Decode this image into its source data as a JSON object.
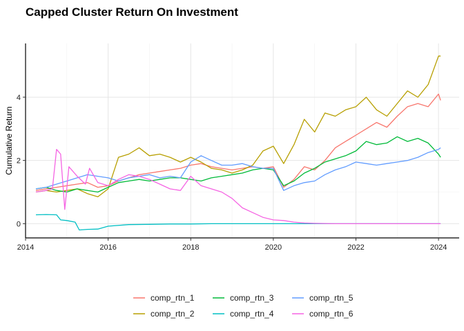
{
  "chart_data": {
    "type": "line",
    "title": "Capped Cluster Return On Investment",
    "xlabel": "",
    "ylabel": "Cumulative Return",
    "xlim": [
      2014.0,
      2024.5
    ],
    "ylim": [
      -0.45,
      5.7
    ],
    "x_ticks": [
      2014,
      2016,
      2018,
      2020,
      2022,
      2024
    ],
    "x_tick_labels": [
      "2014",
      "2016",
      "2018",
      "2020",
      "2022",
      "2024"
    ],
    "y_ticks": [
      0,
      2,
      4
    ],
    "y_tick_labels": [
      "0",
      "2",
      "4"
    ],
    "grid": true,
    "legend_position": "bottom",
    "series": [
      {
        "name": "comp_rtn_1",
        "color": "#F8766D",
        "points": [
          [
            2014.25,
            1.05
          ],
          [
            2014.5,
            1.1
          ],
          [
            2014.75,
            1.15
          ],
          [
            2015.0,
            1.2
          ],
          [
            2015.25,
            1.25
          ],
          [
            2015.5,
            1.3
          ],
          [
            2015.75,
            1.15
          ],
          [
            2016.0,
            1.2
          ],
          [
            2016.25,
            1.35
          ],
          [
            2016.5,
            1.45
          ],
          [
            2016.75,
            1.55
          ],
          [
            2017.0,
            1.6
          ],
          [
            2017.25,
            1.65
          ],
          [
            2017.5,
            1.7
          ],
          [
            2017.75,
            1.75
          ],
          [
            2018.0,
            1.85
          ],
          [
            2018.25,
            1.9
          ],
          [
            2018.5,
            1.8
          ],
          [
            2018.75,
            1.75
          ],
          [
            2019.0,
            1.7
          ],
          [
            2019.25,
            1.75
          ],
          [
            2019.5,
            1.8
          ],
          [
            2019.75,
            1.75
          ],
          [
            2020.0,
            1.8
          ],
          [
            2020.25,
            1.15
          ],
          [
            2020.5,
            1.4
          ],
          [
            2020.75,
            1.8
          ],
          [
            2021.0,
            1.7
          ],
          [
            2021.25,
            2.0
          ],
          [
            2021.5,
            2.4
          ],
          [
            2021.75,
            2.6
          ],
          [
            2022.0,
            2.8
          ],
          [
            2022.25,
            3.0
          ],
          [
            2022.5,
            3.2
          ],
          [
            2022.75,
            3.05
          ],
          [
            2023.0,
            3.4
          ],
          [
            2023.25,
            3.7
          ],
          [
            2023.5,
            3.8
          ],
          [
            2023.75,
            3.7
          ],
          [
            2024.0,
            4.1
          ],
          [
            2024.05,
            3.9
          ]
        ]
      },
      {
        "name": "comp_rtn_2",
        "color": "#B79F00",
        "points": [
          [
            2014.25,
            1.0
          ],
          [
            2014.5,
            1.05
          ],
          [
            2014.75,
            1.0
          ],
          [
            2015.0,
            1.05
          ],
          [
            2015.25,
            1.1
          ],
          [
            2015.5,
            0.95
          ],
          [
            2015.75,
            0.85
          ],
          [
            2016.0,
            1.1
          ],
          [
            2016.25,
            2.1
          ],
          [
            2016.5,
            2.2
          ],
          [
            2016.75,
            2.4
          ],
          [
            2017.0,
            2.15
          ],
          [
            2017.25,
            2.2
          ],
          [
            2017.5,
            2.1
          ],
          [
            2017.75,
            1.95
          ],
          [
            2018.0,
            2.1
          ],
          [
            2018.25,
            1.95
          ],
          [
            2018.5,
            1.75
          ],
          [
            2018.75,
            1.7
          ],
          [
            2019.0,
            1.6
          ],
          [
            2019.25,
            1.7
          ],
          [
            2019.5,
            1.85
          ],
          [
            2019.75,
            2.3
          ],
          [
            2020.0,
            2.45
          ],
          [
            2020.25,
            1.9
          ],
          [
            2020.5,
            2.5
          ],
          [
            2020.75,
            3.3
          ],
          [
            2021.0,
            2.9
          ],
          [
            2021.25,
            3.5
          ],
          [
            2021.5,
            3.4
          ],
          [
            2021.75,
            3.6
          ],
          [
            2022.0,
            3.7
          ],
          [
            2022.25,
            4.0
          ],
          [
            2022.5,
            3.6
          ],
          [
            2022.75,
            3.4
          ],
          [
            2023.0,
            3.8
          ],
          [
            2023.25,
            4.2
          ],
          [
            2023.5,
            4.0
          ],
          [
            2023.75,
            4.4
          ],
          [
            2024.0,
            5.3
          ],
          [
            2024.05,
            5.3
          ]
        ]
      },
      {
        "name": "comp_rtn_3",
        "color": "#00BA38",
        "points": [
          [
            2014.25,
            1.1
          ],
          [
            2014.5,
            1.15
          ],
          [
            2014.75,
            1.05
          ],
          [
            2015.0,
            1.0
          ],
          [
            2015.25,
            1.1
          ],
          [
            2015.5,
            1.05
          ],
          [
            2015.75,
            1.0
          ],
          [
            2016.0,
            1.15
          ],
          [
            2016.25,
            1.3
          ],
          [
            2016.5,
            1.35
          ],
          [
            2016.75,
            1.4
          ],
          [
            2017.0,
            1.35
          ],
          [
            2017.25,
            1.4
          ],
          [
            2017.5,
            1.45
          ],
          [
            2017.75,
            1.45
          ],
          [
            2018.0,
            1.4
          ],
          [
            2018.25,
            1.35
          ],
          [
            2018.5,
            1.45
          ],
          [
            2018.75,
            1.5
          ],
          [
            2019.0,
            1.55
          ],
          [
            2019.25,
            1.6
          ],
          [
            2019.5,
            1.7
          ],
          [
            2019.75,
            1.75
          ],
          [
            2020.0,
            1.7
          ],
          [
            2020.25,
            1.2
          ],
          [
            2020.5,
            1.35
          ],
          [
            2020.75,
            1.6
          ],
          [
            2021.0,
            1.75
          ],
          [
            2021.25,
            1.95
          ],
          [
            2021.5,
            2.05
          ],
          [
            2021.75,
            2.15
          ],
          [
            2022.0,
            2.3
          ],
          [
            2022.25,
            2.6
          ],
          [
            2022.5,
            2.5
          ],
          [
            2022.75,
            2.55
          ],
          [
            2023.0,
            2.75
          ],
          [
            2023.25,
            2.6
          ],
          [
            2023.5,
            2.7
          ],
          [
            2023.75,
            2.55
          ],
          [
            2024.0,
            2.2
          ],
          [
            2024.05,
            2.1
          ]
        ]
      },
      {
        "name": "comp_rtn_4",
        "color": "#00BFC4",
        "points": [
          [
            2014.25,
            0.28
          ],
          [
            2014.5,
            0.29
          ],
          [
            2014.75,
            0.28
          ],
          [
            2014.85,
            0.12
          ],
          [
            2015.0,
            0.1
          ],
          [
            2015.2,
            0.05
          ],
          [
            2015.3,
            -0.2
          ],
          [
            2015.5,
            -0.18
          ],
          [
            2015.75,
            -0.17
          ],
          [
            2016.0,
            -0.08
          ],
          [
            2016.5,
            -0.03
          ],
          [
            2017.0,
            -0.02
          ],
          [
            2017.5,
            -0.01
          ],
          [
            2018.0,
            -0.01
          ],
          [
            2018.5,
            0.0
          ],
          [
            2019.0,
            0.0
          ],
          [
            2019.5,
            0.0
          ],
          [
            2020.0,
            0.0
          ],
          [
            2020.5,
            0.0
          ],
          [
            2021.0,
            0.0
          ],
          [
            2021.5,
            0.0
          ],
          [
            2022.0,
            0.0
          ],
          [
            2022.5,
            0.0
          ],
          [
            2023.0,
            0.0
          ],
          [
            2023.5,
            0.0
          ],
          [
            2024.05,
            0.0
          ]
        ]
      },
      {
        "name": "comp_rtn_5",
        "color": "#619CFF",
        "points": [
          [
            2014.25,
            1.1
          ],
          [
            2014.5,
            1.15
          ],
          [
            2014.75,
            1.25
          ],
          [
            2015.0,
            1.35
          ],
          [
            2015.25,
            1.45
          ],
          [
            2015.5,
            1.55
          ],
          [
            2015.75,
            1.5
          ],
          [
            2016.0,
            1.45
          ],
          [
            2016.25,
            1.35
          ],
          [
            2016.5,
            1.45
          ],
          [
            2016.75,
            1.5
          ],
          [
            2017.0,
            1.55
          ],
          [
            2017.25,
            1.45
          ],
          [
            2017.5,
            1.5
          ],
          [
            2017.75,
            1.45
          ],
          [
            2018.0,
            1.95
          ],
          [
            2018.25,
            2.15
          ],
          [
            2018.5,
            2.0
          ],
          [
            2018.75,
            1.85
          ],
          [
            2019.0,
            1.85
          ],
          [
            2019.25,
            1.9
          ],
          [
            2019.5,
            1.8
          ],
          [
            2019.75,
            1.75
          ],
          [
            2020.0,
            1.75
          ],
          [
            2020.25,
            1.05
          ],
          [
            2020.5,
            1.2
          ],
          [
            2020.75,
            1.3
          ],
          [
            2021.0,
            1.35
          ],
          [
            2021.25,
            1.55
          ],
          [
            2021.5,
            1.7
          ],
          [
            2021.75,
            1.8
          ],
          [
            2022.0,
            1.95
          ],
          [
            2022.25,
            1.9
          ],
          [
            2022.5,
            1.85
          ],
          [
            2022.75,
            1.9
          ],
          [
            2023.0,
            1.95
          ],
          [
            2023.25,
            2.0
          ],
          [
            2023.5,
            2.1
          ],
          [
            2023.75,
            2.25
          ],
          [
            2024.0,
            2.35
          ],
          [
            2024.05,
            2.4
          ]
        ]
      },
      {
        "name": "comp_rtn_6",
        "color": "#F564E3",
        "points": [
          [
            2014.25,
            1.0
          ],
          [
            2014.5,
            1.05
          ],
          [
            2014.65,
            1.1
          ],
          [
            2014.75,
            2.35
          ],
          [
            2014.85,
            2.2
          ],
          [
            2014.95,
            0.45
          ],
          [
            2015.05,
            1.8
          ],
          [
            2015.25,
            1.5
          ],
          [
            2015.45,
            1.25
          ],
          [
            2015.55,
            1.75
          ],
          [
            2015.75,
            1.3
          ],
          [
            2016.0,
            1.2
          ],
          [
            2016.25,
            1.4
          ],
          [
            2016.5,
            1.55
          ],
          [
            2016.75,
            1.5
          ],
          [
            2017.0,
            1.4
          ],
          [
            2017.25,
            1.25
          ],
          [
            2017.5,
            1.1
          ],
          [
            2017.75,
            1.05
          ],
          [
            2018.0,
            1.5
          ],
          [
            2018.25,
            1.2
          ],
          [
            2018.5,
            1.1
          ],
          [
            2018.75,
            1.0
          ],
          [
            2019.0,
            0.8
          ],
          [
            2019.25,
            0.5
          ],
          [
            2019.5,
            0.35
          ],
          [
            2019.75,
            0.2
          ],
          [
            2020.0,
            0.12
          ],
          [
            2020.25,
            0.1
          ],
          [
            2020.5,
            0.05
          ],
          [
            2020.75,
            0.02
          ],
          [
            2021.0,
            0.01
          ],
          [
            2021.5,
            0.0
          ],
          [
            2022.0,
            0.0
          ],
          [
            2022.5,
            0.0
          ],
          [
            2023.0,
            0.0
          ],
          [
            2023.5,
            0.0
          ],
          [
            2024.05,
            0.0
          ]
        ]
      }
    ]
  }
}
